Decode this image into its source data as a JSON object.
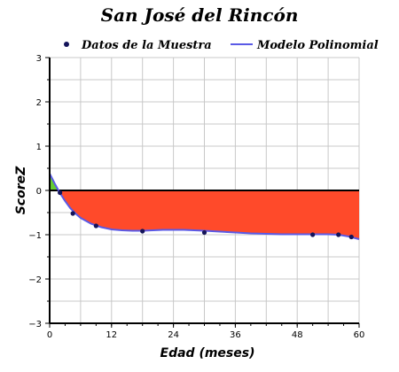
{
  "chart_data": {
    "type": "line",
    "title": "San José del Rincón",
    "xlabel": "Edad (meses)",
    "ylabel": "ScoreZ",
    "xlim": [
      0,
      60
    ],
    "ylim": [
      -3,
      3
    ],
    "x_ticks": [
      0,
      12,
      24,
      36,
      48,
      60
    ],
    "y_ticks": [
      -3,
      -2,
      -1,
      0,
      1,
      2,
      3
    ],
    "grid": true,
    "legend_position": "top",
    "colors": {
      "fill_below": "#ff4a2a",
      "fill_above": "#66cc33",
      "model_line": "#5a5ae6",
      "points": "#14145a",
      "zero_line": "#000000",
      "grid": "#c8c8c8"
    },
    "series": [
      {
        "name": "Datos de la Muestra",
        "kind": "scatter",
        "x": [
          2,
          4.5,
          9,
          18,
          30,
          51,
          56,
          58.5
        ],
        "y": [
          -0.05,
          -0.52,
          -0.8,
          -0.92,
          -0.95,
          -1.0,
          -1.0,
          -1.05
        ]
      },
      {
        "name": "Modelo Polinomial",
        "kind": "line",
        "x": [
          0,
          1,
          2,
          3,
          4,
          5,
          6,
          8,
          10,
          12,
          14,
          16,
          18,
          20,
          22,
          24,
          26,
          28,
          30,
          33,
          36,
          39,
          42,
          45,
          48,
          51,
          54,
          56,
          58,
          60
        ],
        "y": [
          0.38,
          0.15,
          -0.06,
          -0.24,
          -0.4,
          -0.52,
          -0.62,
          -0.75,
          -0.83,
          -0.88,
          -0.9,
          -0.91,
          -0.91,
          -0.9,
          -0.89,
          -0.89,
          -0.89,
          -0.9,
          -0.91,
          -0.93,
          -0.95,
          -0.97,
          -0.98,
          -0.99,
          -0.99,
          -0.99,
          -0.99,
          -1.0,
          -1.04,
          -1.1
        ]
      }
    ]
  }
}
